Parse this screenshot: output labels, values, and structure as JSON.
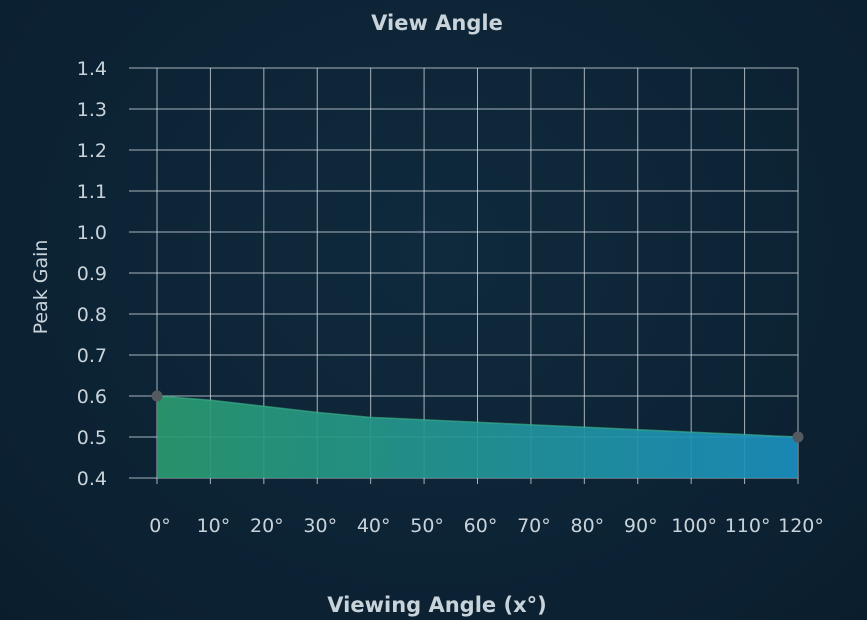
{
  "chart_data": {
    "type": "area",
    "title": "View Angle",
    "xlabel": "Viewing Angle (x°)",
    "ylabel": "Peak Gain",
    "x": [
      0,
      10,
      20,
      30,
      40,
      50,
      60,
      70,
      80,
      90,
      100,
      110,
      120
    ],
    "x_tick_labels": [
      "0°",
      "10°",
      "20°",
      "30°",
      "40°",
      "50°",
      "60°",
      "70°",
      "80°",
      "90°",
      "100°",
      "110°",
      "120°"
    ],
    "y_tick_labels": [
      "0.4",
      "0.5",
      "0.6",
      "0.7",
      "0.8",
      "0.9",
      "1.0",
      "1.1",
      "1.2",
      "1.3",
      "1.4"
    ],
    "series": [
      {
        "values": [
          0.6,
          0.59,
          0.575,
          0.56,
          0.548,
          0.542,
          0.536,
          0.53,
          0.524,
          0.518,
          0.512,
          0.506,
          0.5
        ]
      }
    ],
    "highlighted_points": [
      {
        "x": 0,
        "y": 0.6
      },
      {
        "x": 120,
        "y": 0.5
      }
    ],
    "xlim": [
      0,
      120
    ],
    "ylim": [
      0.4,
      1.4
    ],
    "grid": true,
    "colors": {
      "background": "#0c2233",
      "grid": "#d9e2e8",
      "fill_start": "#2a9a6e",
      "fill_end": "#1b8fbf",
      "marker": "#555a5e",
      "text": "#c9d3da"
    }
  }
}
